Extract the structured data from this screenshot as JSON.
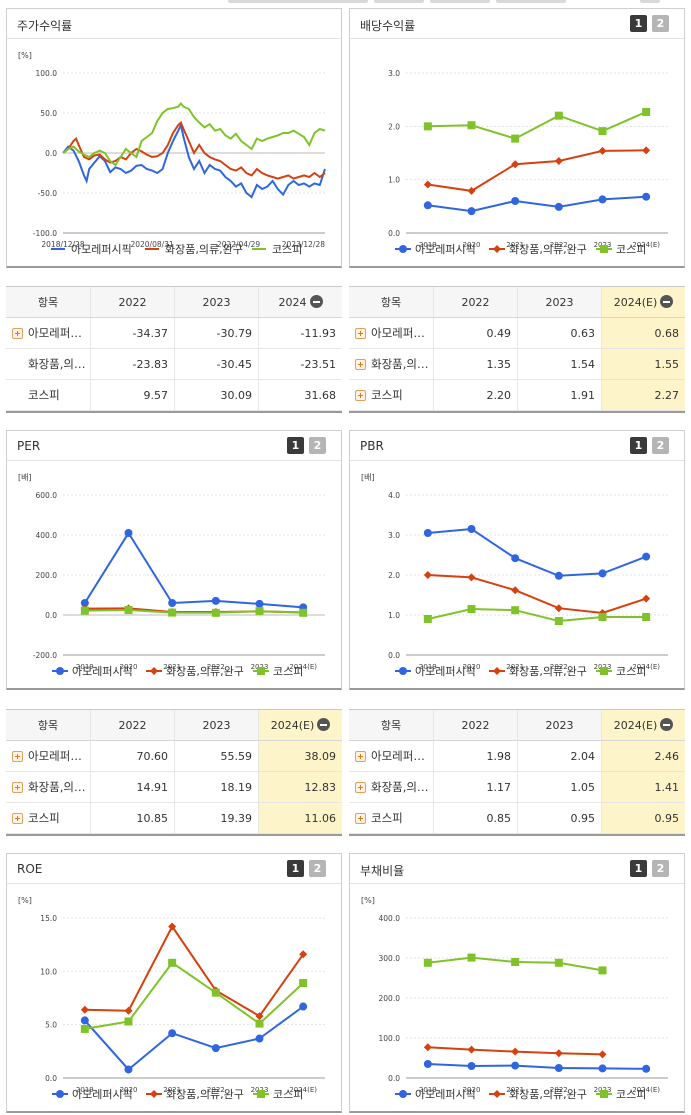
{
  "colors": {
    "s1": "#2f66e0",
    "s2": "#d5410f",
    "s3": "#80c22a",
    "highlight": "#fdf5c9"
  },
  "icons": {
    "expand": "plus-square-icon",
    "collapse": "minus-circle-icon"
  },
  "panels": {
    "stock_return": {
      "title": "주가수익률"
    },
    "dividend": {
      "title": "배당수익률",
      "btn1": "1",
      "btn2": "2"
    },
    "per": {
      "title": "PER",
      "btn1": "1",
      "btn2": "2"
    },
    "pbr": {
      "title": "PBR",
      "btn1": "1",
      "btn2": "2"
    },
    "roe": {
      "title": "ROE",
      "btn1": "1",
      "btn2": "2"
    },
    "debt": {
      "title": "부채비율",
      "btn1": "1",
      "btn2": "2"
    }
  },
  "chart_data": [
    {
      "id": "stock_return",
      "type": "line",
      "unit": "[%]",
      "ylim": [
        -100,
        100
      ],
      "yticks": [
        "100.0",
        "50.0",
        "0.0",
        "-50.0",
        "-100.0"
      ],
      "x_labels": [
        "2018/12/28",
        "2020/08/31",
        "2022/04/29",
        "2023/12/28"
      ],
      "x_range": [
        "2018/12/28",
        "2024/05"
      ],
      "legend": [
        "아모레퍼시픽",
        "화장품,의류,완구",
        "코스피"
      ],
      "series": [
        {
          "name": "아모레퍼시픽",
          "points": [
            [
              0,
              0
            ],
            [
              2,
              8
            ],
            [
              4,
              3
            ],
            [
              6,
              -10
            ],
            [
              8,
              -28
            ],
            [
              9,
              -35
            ],
            [
              10,
              -20
            ],
            [
              12,
              -12
            ],
            [
              14,
              -4
            ],
            [
              16,
              -10
            ],
            [
              18,
              -24
            ],
            [
              20,
              -18
            ],
            [
              22,
              -20
            ],
            [
              24,
              -25
            ],
            [
              26,
              -22
            ],
            [
              28,
              -16
            ],
            [
              30,
              -15
            ],
            [
              32,
              -20
            ],
            [
              34,
              -22
            ],
            [
              36,
              -25
            ],
            [
              38,
              -20
            ],
            [
              40,
              0
            ],
            [
              42,
              15
            ],
            [
              44,
              28
            ],
            [
              45,
              35
            ],
            [
              46,
              20
            ],
            [
              48,
              -5
            ],
            [
              50,
              -20
            ],
            [
              52,
              -10
            ],
            [
              54,
              -25
            ],
            [
              56,
              -15
            ],
            [
              58,
              -20
            ],
            [
              60,
              -22
            ],
            [
              62,
              -30
            ],
            [
              64,
              -35
            ],
            [
              66,
              -42
            ],
            [
              68,
              -38
            ],
            [
              70,
              -50
            ],
            [
              72,
              -55
            ],
            [
              74,
              -40
            ],
            [
              76,
              -45
            ],
            [
              78,
              -42
            ],
            [
              80,
              -35
            ],
            [
              82,
              -45
            ],
            [
              84,
              -52
            ],
            [
              86,
              -40
            ],
            [
              88,
              -35
            ],
            [
              90,
              -40
            ],
            [
              92,
              -38
            ],
            [
              94,
              -42
            ],
            [
              96,
              -38
            ],
            [
              98,
              -40
            ],
            [
              100,
              -20
            ]
          ]
        },
        {
          "name": "화장품,의류,완구",
          "points": [
            [
              0,
              0
            ],
            [
              2,
              5
            ],
            [
              4,
              15
            ],
            [
              5,
              18
            ],
            [
              6,
              10
            ],
            [
              8,
              -5
            ],
            [
              10,
              -8
            ],
            [
              12,
              -3
            ],
            [
              14,
              -2
            ],
            [
              16,
              -8
            ],
            [
              18,
              -12
            ],
            [
              20,
              -10
            ],
            [
              22,
              -5
            ],
            [
              24,
              -8
            ],
            [
              26,
              0
            ],
            [
              28,
              5
            ],
            [
              30,
              2
            ],
            [
              32,
              -2
            ],
            [
              34,
              -5
            ],
            [
              36,
              -4
            ],
            [
              38,
              0
            ],
            [
              40,
              10
            ],
            [
              42,
              25
            ],
            [
              44,
              35
            ],
            [
              45,
              38
            ],
            [
              46,
              30
            ],
            [
              48,
              15
            ],
            [
              50,
              0
            ],
            [
              52,
              10
            ],
            [
              54,
              0
            ],
            [
              56,
              -5
            ],
            [
              58,
              -8
            ],
            [
              60,
              -10
            ],
            [
              62,
              -15
            ],
            [
              64,
              -20
            ],
            [
              66,
              -22
            ],
            [
              68,
              -18
            ],
            [
              70,
              -25
            ],
            [
              72,
              -28
            ],
            [
              74,
              -20
            ],
            [
              76,
              -25
            ],
            [
              78,
              -28
            ],
            [
              80,
              -30
            ],
            [
              82,
              -32
            ],
            [
              84,
              -30
            ],
            [
              86,
              -28
            ],
            [
              88,
              -32
            ],
            [
              90,
              -30
            ],
            [
              92,
              -28
            ],
            [
              94,
              -30
            ],
            [
              96,
              -25
            ],
            [
              98,
              -30
            ],
            [
              100,
              -25
            ]
          ]
        },
        {
          "name": "코스피",
          "points": [
            [
              0,
              0
            ],
            [
              2,
              5
            ],
            [
              4,
              8
            ],
            [
              6,
              2
            ],
            [
              8,
              -2
            ],
            [
              10,
              -5
            ],
            [
              12,
              0
            ],
            [
              14,
              3
            ],
            [
              16,
              0
            ],
            [
              18,
              -10
            ],
            [
              20,
              -15
            ],
            [
              22,
              -5
            ],
            [
              24,
              5
            ],
            [
              26,
              0
            ],
            [
              28,
              -5
            ],
            [
              30,
              15
            ],
            [
              32,
              20
            ],
            [
              34,
              25
            ],
            [
              36,
              40
            ],
            [
              38,
              50
            ],
            [
              40,
              55
            ],
            [
              42,
              56
            ],
            [
              44,
              58
            ],
            [
              45,
              62
            ],
            [
              46,
              58
            ],
            [
              48,
              55
            ],
            [
              50,
              45
            ],
            [
              52,
              38
            ],
            [
              54,
              32
            ],
            [
              56,
              36
            ],
            [
              58,
              28
            ],
            [
              60,
              30
            ],
            [
              62,
              22
            ],
            [
              64,
              18
            ],
            [
              66,
              24
            ],
            [
              68,
              15
            ],
            [
              70,
              10
            ],
            [
              72,
              5
            ],
            [
              74,
              18
            ],
            [
              76,
              15
            ],
            [
              78,
              18
            ],
            [
              80,
              20
            ],
            [
              82,
              22
            ],
            [
              84,
              25
            ],
            [
              86,
              25
            ],
            [
              88,
              28
            ],
            [
              90,
              24
            ],
            [
              92,
              20
            ],
            [
              94,
              10
            ],
            [
              96,
              25
            ],
            [
              98,
              30
            ],
            [
              100,
              28
            ]
          ]
        }
      ]
    },
    {
      "id": "dividend",
      "type": "line",
      "unit": "",
      "ylim": [
        0,
        3
      ],
      "yticks": [
        "3.0",
        "2.0",
        "1.0",
        "0.0"
      ],
      "categories": [
        "2019",
        "2020",
        "2021",
        "2022",
        "2023",
        "2024(E)"
      ],
      "legend": [
        "아모레퍼시픽",
        "화장품,의류,완구",
        "코스피"
      ],
      "series": [
        {
          "name": "아모레퍼시픽",
          "values": [
            0.52,
            0.41,
            0.6,
            0.49,
            0.63,
            0.68
          ]
        },
        {
          "name": "화장품,의류,완구",
          "values": [
            0.91,
            0.79,
            1.29,
            1.35,
            1.54,
            1.55
          ]
        },
        {
          "name": "코스피",
          "values": [
            2.0,
            2.02,
            1.77,
            2.2,
            1.91,
            2.27
          ]
        }
      ]
    },
    {
      "id": "per",
      "type": "line",
      "unit": "[배]",
      "ylim": [
        -200,
        600
      ],
      "yticks": [
        "600.0",
        "400.0",
        "200.0",
        "0.0",
        "-200.0"
      ],
      "categories": [
        "2019",
        "2020",
        "2021",
        "2022",
        "2023",
        "2024(E)"
      ],
      "legend": [
        "아모레퍼시픽",
        "화장품,의류,완구",
        "코스피"
      ],
      "series": [
        {
          "name": "아모레퍼시픽",
          "values": [
            60,
            410,
            60,
            70.6,
            55.59,
            38.09
          ]
        },
        {
          "name": "화장품,의류,완구",
          "values": [
            32,
            33,
            15,
            14.91,
            18.19,
            12.83
          ]
        },
        {
          "name": "코스피",
          "values": [
            22,
            25,
            12,
            10.85,
            19.39,
            11.06
          ]
        }
      ]
    },
    {
      "id": "pbr",
      "type": "line",
      "unit": "[배]",
      "ylim": [
        0,
        4
      ],
      "yticks": [
        "4.0",
        "3.0",
        "2.0",
        "1.0",
        "0.0"
      ],
      "categories": [
        "2019",
        "2020",
        "2021",
        "2022",
        "2023",
        "2024(E)"
      ],
      "legend": [
        "아모레퍼시픽",
        "화장품,의류,완구",
        "코스피"
      ],
      "series": [
        {
          "name": "아모레퍼시픽",
          "values": [
            3.05,
            3.15,
            2.42,
            1.98,
            2.04,
            2.46
          ]
        },
        {
          "name": "화장품,의류,완구",
          "values": [
            2.0,
            1.94,
            1.62,
            1.17,
            1.05,
            1.41
          ]
        },
        {
          "name": "코스피",
          "values": [
            0.9,
            1.15,
            1.12,
            0.85,
            0.95,
            0.95
          ]
        }
      ]
    },
    {
      "id": "roe",
      "type": "line",
      "unit": "[%]",
      "ylim": [
        0,
        15
      ],
      "yticks": [
        "15.0",
        "10.0",
        "5.0",
        "0.0"
      ],
      "categories": [
        "2019",
        "2020",
        "2021",
        "2022",
        "2023",
        "2024(E)"
      ],
      "legend": [
        "아모레퍼시픽",
        "화장품,의류,완구",
        "코스피"
      ],
      "series": [
        {
          "name": "아모레퍼시픽",
          "values": [
            5.4,
            0.8,
            4.2,
            2.8,
            3.7,
            6.7
          ]
        },
        {
          "name": "화장품,의류,완구",
          "values": [
            6.4,
            6.3,
            14.2,
            8.2,
            5.8,
            11.6
          ]
        },
        {
          "name": "코스피",
          "values": [
            4.6,
            5.3,
            10.8,
            8.0,
            5.1,
            8.9
          ]
        }
      ]
    },
    {
      "id": "debt",
      "type": "line",
      "unit": "[%]",
      "ylim": [
        0,
        400
      ],
      "yticks": [
        "400.0",
        "300.0",
        "200.0",
        "100.0",
        "0.0"
      ],
      "categories": [
        "2019",
        "2020",
        "2021",
        "2022",
        "2023",
        "2024(E)"
      ],
      "legend": [
        "아모레퍼시픽",
        "화장품,의류,완구",
        "코스피"
      ],
      "series": [
        {
          "name": "아모레퍼시픽",
          "values": [
            35,
            30,
            31,
            25,
            24,
            23
          ]
        },
        {
          "name": "화장품,의류,완구",
          "values": [
            77,
            71,
            66,
            62,
            59,
            null
          ]
        },
        {
          "name": "코스피",
          "values": [
            288,
            301,
            290,
            288,
            269,
            null
          ]
        }
      ]
    }
  ],
  "tables": {
    "stock_return": {
      "headers": [
        "항목",
        "2022",
        "2023",
        "2024"
      ],
      "rows": [
        {
          "name": "아모레퍼…",
          "plus": true,
          "values": [
            "-34.37",
            "-30.79",
            "-11.93"
          ]
        },
        {
          "name": "화장품,의…",
          "plus": false,
          "values": [
            "-23.83",
            "-30.45",
            "-23.51"
          ]
        },
        {
          "name": "코스피",
          "plus": false,
          "values": [
            "9.57",
            "30.09",
            "31.68"
          ]
        }
      ]
    },
    "dividend": {
      "headers": [
        "항목",
        "2022",
        "2023",
        "2024(E)"
      ],
      "rows": [
        {
          "name": "아모레퍼…",
          "plus": true,
          "values": [
            "0.49",
            "0.63",
            "0.68"
          ]
        },
        {
          "name": "화장품,의…",
          "plus": true,
          "values": [
            "1.35",
            "1.54",
            "1.55"
          ]
        },
        {
          "name": "코스피",
          "plus": true,
          "values": [
            "2.20",
            "1.91",
            "2.27"
          ]
        }
      ]
    },
    "per": {
      "headers": [
        "항목",
        "2022",
        "2023",
        "2024(E)"
      ],
      "rows": [
        {
          "name": "아모레퍼…",
          "plus": true,
          "values": [
            "70.60",
            "55.59",
            "38.09"
          ]
        },
        {
          "name": "화장품,의…",
          "plus": true,
          "values": [
            "14.91",
            "18.19",
            "12.83"
          ]
        },
        {
          "name": "코스피",
          "plus": true,
          "values": [
            "10.85",
            "19.39",
            "11.06"
          ]
        }
      ]
    },
    "pbr": {
      "headers": [
        "항목",
        "2022",
        "2023",
        "2024(E)"
      ],
      "rows": [
        {
          "name": "아모레퍼…",
          "plus": true,
          "values": [
            "1.98",
            "2.04",
            "2.46"
          ]
        },
        {
          "name": "화장품,의…",
          "plus": true,
          "values": [
            "1.17",
            "1.05",
            "1.41"
          ]
        },
        {
          "name": "코스피",
          "plus": true,
          "values": [
            "0.85",
            "0.95",
            "0.95"
          ]
        }
      ]
    }
  }
}
